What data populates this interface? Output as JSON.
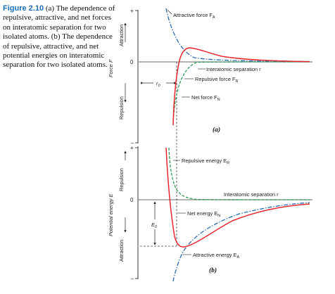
{
  "caption": {
    "figure_label": "Figure 2.10",
    "text": "(a) The dependence of repulsive, attractive, and net forces on interatomic separation for two isolated atoms. (b) The dependence of repulsive, attractive, and net potential energies on interatomic separation for two isolated atoms."
  },
  "panel_a": {
    "y_axis_label": "Force F",
    "y_top_label": "Attraction",
    "y_bottom_label": "Repulsion",
    "tick_plus": "+",
    "tick_zero": "0",
    "tick_minus": "–",
    "x_axis_label": "Interatomic separation r",
    "attractive_label": "Attractive force F",
    "attractive_sub": "A",
    "repulsive_label": "Repulsive force F",
    "repulsive_sub": "R",
    "net_label": "Net force F",
    "net_sub": "N",
    "r0_label": "r",
    "r0_sub": "0",
    "panel_tag": "(a)",
    "colors": {
      "attractive": "#2b6cb0",
      "repulsive": "#2e9e5a",
      "net": "#e8262c"
    }
  },
  "panel_b": {
    "y_axis_label": "Potential energy E",
    "y_top_label": "Repulsion",
    "y_bottom_label": "Attraction",
    "tick_plus": "+",
    "tick_zero": "0",
    "tick_minus": "–",
    "x_axis_label": "Interatomic separation r",
    "repulsive_label": "Repulsive energy E",
    "repulsive_sub": "R",
    "net_label": "Net energy E",
    "net_sub": "N",
    "attractive_label": "Attractive energy E",
    "attractive_sub": "A",
    "e0_label": "E",
    "e0_sub": "0",
    "panel_tag": "(b)",
    "colors": {
      "attractive": "#2b6cb0",
      "repulsive": "#2e9e5a",
      "net": "#e8262c"
    }
  }
}
